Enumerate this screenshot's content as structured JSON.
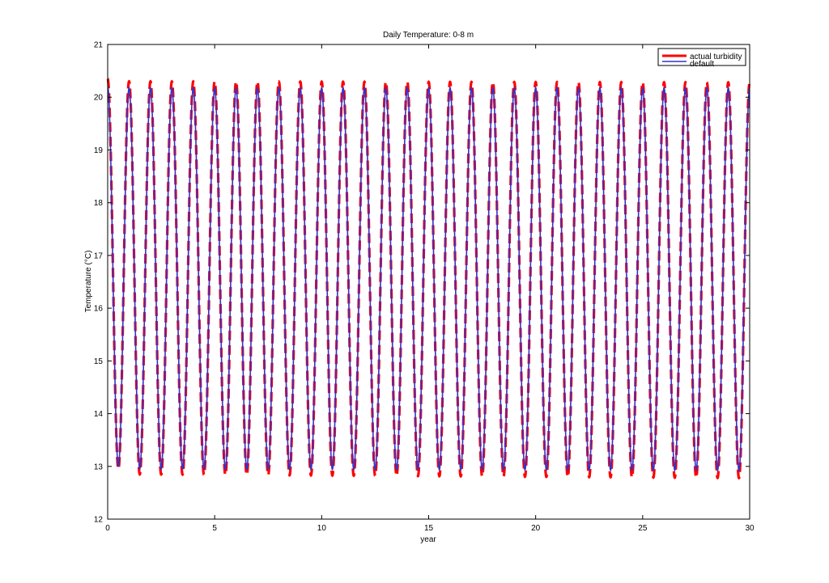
{
  "chart_data": {
    "type": "line",
    "title": "Daily Temperature: 0-8 m",
    "xlabel": "year",
    "ylabel": "Temperature (°C)",
    "xlim": [
      0,
      30
    ],
    "ylim": [
      12,
      21
    ],
    "xticks": [
      0,
      5,
      10,
      15,
      20,
      25,
      30
    ],
    "yticks": [
      12,
      13,
      14,
      15,
      16,
      17,
      18,
      19,
      20,
      21
    ],
    "grid": false,
    "legend_position": "top-right",
    "series": [
      {
        "name": "actual turbidity",
        "color": "#ff0000",
        "style": "dashed",
        "period_years": 1.0,
        "peaks": [
          {
            "x": 0.0,
            "y": 20.35
          },
          {
            "x": 1.0,
            "y": 20.3
          },
          {
            "x": 30.0,
            "y": 20.28
          }
        ],
        "troughs": [
          {
            "x": 0.5,
            "y": 12.95
          },
          {
            "x": 1.5,
            "y": 12.85
          },
          {
            "x": 29.5,
            "y": 12.78
          }
        ]
      },
      {
        "name": "default",
        "color": "#3333cc",
        "style": "solid",
        "period_years": 1.0,
        "peaks": [
          {
            "x": 0.0,
            "y": 20.2
          },
          {
            "x": 1.0,
            "y": 20.18
          },
          {
            "x": 30.0,
            "y": 20.18
          }
        ],
        "troughs": [
          {
            "x": 0.5,
            "y": 13.0
          },
          {
            "x": 1.5,
            "y": 12.95
          },
          {
            "x": 29.5,
            "y": 12.92
          }
        ]
      }
    ]
  }
}
